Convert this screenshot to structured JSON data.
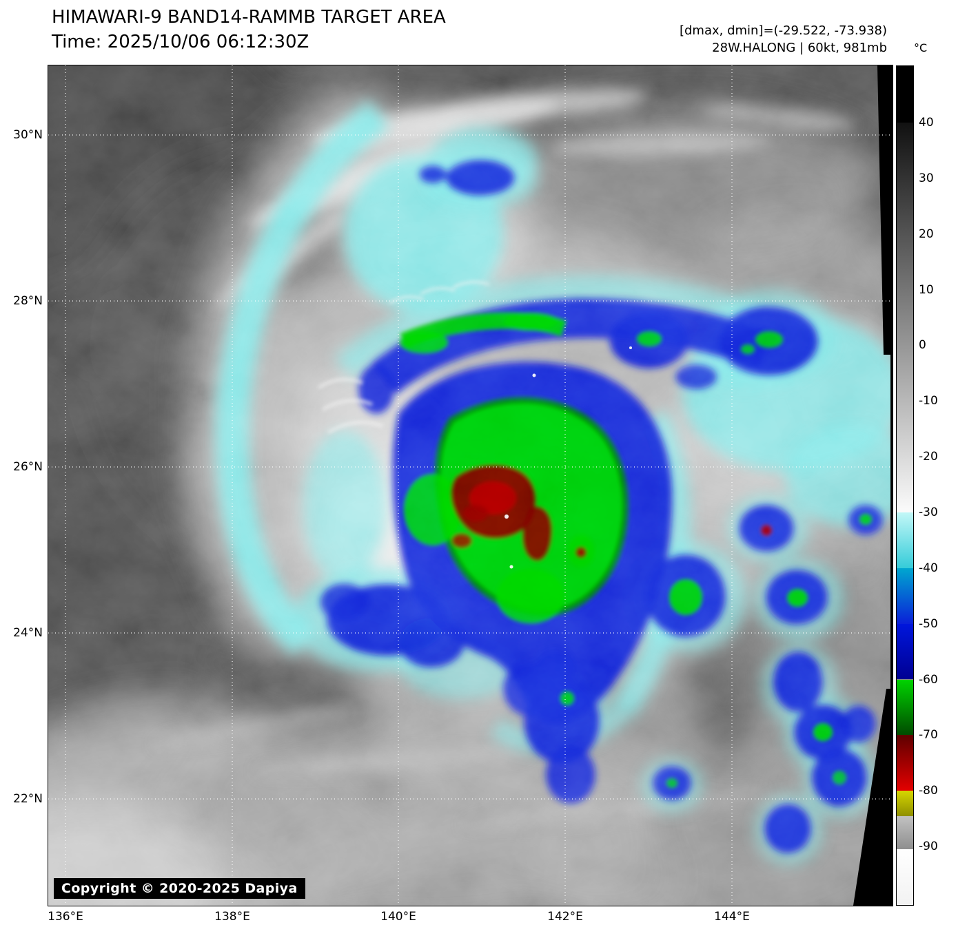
{
  "header": {
    "title": "HIMAWARI-9 BAND14-RAMMB TARGET AREA",
    "time_line": "Time: 2025/10/06 06:12:30Z",
    "dmax_dmin": "[dmax, dmin]=(-29.522, -73.938)",
    "storm_line": "28W.HALONG | 60kt, 981mb"
  },
  "colorbar": {
    "unit": "°C",
    "ticks": [
      40,
      30,
      20,
      10,
      0,
      -10,
      -20,
      -30,
      -40,
      -50,
      -60,
      -70,
      -80,
      -90
    ],
    "segments": [
      {
        "from": 50.3,
        "to": 40,
        "c1": "#000000",
        "c2": "#000000"
      },
      {
        "from": 40,
        "to": -30,
        "c1": "#111111",
        "c2": "#fbfbfb"
      },
      {
        "from": -30,
        "to": -40,
        "c1": "#c2f7f7",
        "c2": "#35ccd9"
      },
      {
        "from": -40,
        "to": -50,
        "c1": "#00a7cf",
        "c2": "#0a1fd8"
      },
      {
        "from": -50,
        "to": -60,
        "c1": "#0016dc",
        "c2": "#000092"
      },
      {
        "from": -60,
        "to": -70,
        "c1": "#00d300",
        "c2": "#004b00"
      },
      {
        "from": -70,
        "to": -80,
        "c1": "#5e0000",
        "c2": "#e30000"
      },
      {
        "from": -80,
        "to": -84.5,
        "c1": "#d6d600",
        "c2": "#8f8f00"
      },
      {
        "from": -84.5,
        "to": -90.5,
        "c1": "#c2c2c2",
        "c2": "#8e8e8e"
      },
      {
        "from": -90.5,
        "to": -100.6,
        "c1": "#ffffff",
        "c2": "#f2f2f2"
      }
    ]
  },
  "axes": {
    "lat_labels": [
      "30°N",
      "28°N",
      "26°N",
      "24°N",
      "22°N"
    ],
    "lon_labels": [
      "136°E",
      "138°E",
      "140°E",
      "142°E",
      "144°E"
    ]
  },
  "copyright": {
    "text": "Copyright © 2020-2025 Dapiya"
  },
  "palette": {
    "warm_background": "#4c4c4c",
    "cloud_white": "#e8e8e8",
    "cyan_cold": "#79e7e7",
    "blue_cold": "#0b1fd6",
    "green_cold": "#00cf00",
    "dark_red_cold": "#6b0000",
    "scan_edge_black": "#000000",
    "grid_line": "#ffffff"
  }
}
